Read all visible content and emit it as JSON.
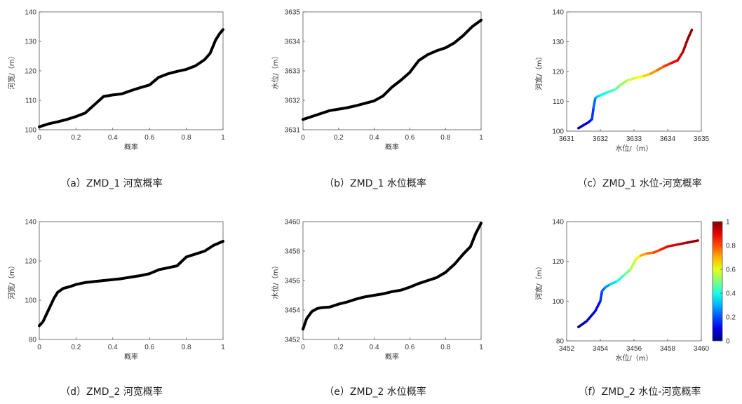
{
  "colors": {
    "line": "#000000",
    "axis": "#555555",
    "colormap": "jet"
  },
  "chart_data": [
    {
      "type": "line",
      "caption": "（a）ZMD_1 河宽概率",
      "xlabel": "概率",
      "ylabel": "河宽/（m）",
      "xlim": [
        0,
        1
      ],
      "ylim": [
        100,
        140
      ],
      "xticks": [
        0,
        0.2,
        0.4,
        0.6,
        0.8,
        1
      ],
      "xtick_labels": [
        "0",
        "0.2",
        "0.4",
        "0.6",
        "0.8",
        "1"
      ],
      "yticks": [
        100,
        110,
        120,
        130,
        140
      ],
      "ytick_labels": [
        "100",
        "110",
        "120",
        "130",
        "140"
      ],
      "x": [
        0,
        0.05,
        0.1,
        0.15,
        0.2,
        0.25,
        0.3,
        0.35,
        0.4,
        0.45,
        0.5,
        0.55,
        0.6,
        0.65,
        0.7,
        0.75,
        0.8,
        0.85,
        0.9,
        0.93,
        0.96,
        0.98,
        1.0
      ],
      "y": [
        101,
        102,
        102.7,
        103.5,
        104.5,
        105.7,
        108.5,
        111.3,
        111.8,
        112.2,
        113.3,
        114.3,
        115.2,
        117.8,
        119.0,
        119.8,
        120.5,
        121.7,
        123.8,
        126.0,
        130.5,
        132.5,
        134
      ]
    },
    {
      "type": "line",
      "caption": "（b）ZMD_1 水位概率",
      "xlabel": "概率",
      "ylabel": "水位/（m）",
      "xlim": [
        0,
        1
      ],
      "ylim": [
        3631,
        3635
      ],
      "xticks": [
        0,
        0.2,
        0.4,
        0.6,
        0.8,
        1
      ],
      "xtick_labels": [
        "0",
        "0.2",
        "0.4",
        "0.6",
        "0.8",
        "1"
      ],
      "yticks": [
        3631,
        3632,
        3633,
        3634,
        3635
      ],
      "ytick_labels": [
        "3631",
        "3632",
        "3633",
        "3634",
        "3635"
      ],
      "x": [
        0,
        0.05,
        0.1,
        0.15,
        0.2,
        0.25,
        0.3,
        0.35,
        0.4,
        0.45,
        0.5,
        0.55,
        0.6,
        0.65,
        0.7,
        0.75,
        0.8,
        0.85,
        0.9,
        0.95,
        1.0
      ],
      "y": [
        3631.35,
        3631.45,
        3631.55,
        3631.65,
        3631.7,
        3631.75,
        3631.82,
        3631.9,
        3631.98,
        3632.15,
        3632.45,
        3632.68,
        3632.95,
        3633.35,
        3633.55,
        3633.68,
        3633.78,
        3633.95,
        3634.2,
        3634.5,
        3634.72
      ]
    },
    {
      "type": "scatter",
      "caption": "（c）ZMD_1 水位-河宽概率",
      "xlabel": "水位/（m）",
      "ylabel": "河宽/（m）",
      "xlim": [
        3631,
        3635
      ],
      "ylim": [
        100,
        140
      ],
      "xticks": [
        3631,
        3632,
        3633,
        3634,
        3635
      ],
      "xtick_labels": [
        "3631",
        "3632",
        "3633",
        "3634",
        "3635"
      ],
      "yticks": [
        100,
        110,
        120,
        130,
        140
      ],
      "ytick_labels": [
        "100",
        "110",
        "120",
        "130",
        "140"
      ],
      "colorbar": {
        "min": 0,
        "max": 1,
        "ticks": [
          0,
          0.2,
          0.4,
          0.6,
          0.8,
          1
        ],
        "tick_labels": [
          "0",
          "0.2",
          "0.4",
          "0.6",
          "0.8",
          "1"
        ]
      },
      "x": [
        3631.35,
        3631.5,
        3631.65,
        3631.75,
        3631.8,
        3631.85,
        3631.9,
        3632.0,
        3632.2,
        3632.45,
        3632.6,
        3632.8,
        3633.1,
        3633.3,
        3633.5,
        3633.7,
        3633.9,
        3634.1,
        3634.3,
        3634.45,
        3634.6,
        3634.72
      ],
      "y": [
        101,
        102,
        103,
        104,
        108,
        111,
        111.5,
        112,
        113,
        114,
        115.5,
        117,
        118,
        118.5,
        119.3,
        120.5,
        121.8,
        122.8,
        123.8,
        126.5,
        131,
        134
      ],
      "c": [
        0,
        0.05,
        0.1,
        0.15,
        0.2,
        0.25,
        0.3,
        0.35,
        0.4,
        0.45,
        0.5,
        0.55,
        0.6,
        0.65,
        0.7,
        0.75,
        0.8,
        0.85,
        0.9,
        0.94,
        0.97,
        1.0
      ]
    },
    {
      "type": "line",
      "caption": "（d）ZMD_2 河宽概率",
      "xlabel": "概率",
      "ylabel": "河宽/（m）",
      "xlim": [
        0,
        1
      ],
      "ylim": [
        80,
        140
      ],
      "xticks": [
        0,
        0.2,
        0.4,
        0.6,
        0.8,
        1
      ],
      "xtick_labels": [
        "0",
        "0.2",
        "0.4",
        "0.6",
        "0.8",
        "1"
      ],
      "yticks": [
        80,
        100,
        120,
        140
      ],
      "ytick_labels": [
        "80",
        "100",
        "120",
        "140"
      ],
      "x": [
        0,
        0.02,
        0.05,
        0.08,
        0.1,
        0.13,
        0.17,
        0.2,
        0.25,
        0.3,
        0.35,
        0.4,
        0.45,
        0.5,
        0.55,
        0.6,
        0.65,
        0.7,
        0.75,
        0.8,
        0.85,
        0.9,
        0.95,
        1.0
      ],
      "y": [
        87,
        89,
        95,
        101,
        104,
        106,
        107,
        108,
        109,
        109.5,
        110,
        110.5,
        111,
        111.8,
        112.5,
        113.5,
        115.5,
        116.5,
        117.5,
        122,
        123.5,
        125,
        128,
        130
      ]
    },
    {
      "type": "line",
      "caption": "（e）ZMD_2 水位概率",
      "xlabel": "概率",
      "ylabel": "水位/（m）",
      "xlim": [
        0,
        1
      ],
      "ylim": [
        3452,
        3460
      ],
      "xticks": [
        0,
        0.2,
        0.4,
        0.6,
        0.8,
        1
      ],
      "xtick_labels": [
        "0",
        "0.2",
        "0.4",
        "0.6",
        "0.8",
        "1"
      ],
      "yticks": [
        3452,
        3454,
        3456,
        3458,
        3460
      ],
      "ytick_labels": [
        "3452",
        "3454",
        "3456",
        "3458",
        "3460"
      ],
      "x": [
        0,
        0.02,
        0.05,
        0.08,
        0.1,
        0.15,
        0.2,
        0.25,
        0.3,
        0.35,
        0.4,
        0.45,
        0.5,
        0.55,
        0.6,
        0.65,
        0.7,
        0.75,
        0.8,
        0.85,
        0.9,
        0.94,
        0.97,
        1.0
      ],
      "y": [
        3452.7,
        3453.4,
        3453.9,
        3454.1,
        3454.15,
        3454.2,
        3454.4,
        3454.55,
        3454.75,
        3454.9,
        3455.0,
        3455.1,
        3455.25,
        3455.35,
        3455.55,
        3455.8,
        3456.0,
        3456.2,
        3456.55,
        3457.1,
        3457.8,
        3458.3,
        3459.2,
        3459.9
      ]
    },
    {
      "type": "scatter",
      "caption": "（f）ZMD_2 水位-河宽概率",
      "xlabel": "水位/（m）",
      "ylabel": "河宽/（m）",
      "xlim": [
        3452,
        3460
      ],
      "ylim": [
        80,
        140
      ],
      "xticks": [
        3452,
        3454,
        3456,
        3458,
        3460
      ],
      "xtick_labels": [
        "3452",
        "3454",
        "3456",
        "3458",
        "3460"
      ],
      "yticks": [
        80,
        100,
        120,
        140
      ],
      "ytick_labels": [
        "80",
        "100",
        "120",
        "140"
      ],
      "colorbar": {
        "min": 0,
        "max": 1,
        "ticks": [
          0,
          0.2,
          0.4,
          0.6,
          0.8,
          1
        ],
        "tick_labels": [
          "0",
          "0.2",
          "0.4",
          "0.6",
          "0.8",
          "1"
        ]
      },
      "x": [
        3452.7,
        3453.2,
        3453.7,
        3454.0,
        3454.1,
        3454.3,
        3454.6,
        3455.0,
        3455.4,
        3455.8,
        3456.1,
        3456.4,
        3456.8,
        3457.2,
        3457.6,
        3458.0,
        3458.6,
        3459.2,
        3459.8
      ],
      "y": [
        87,
        90,
        95,
        100,
        105,
        107,
        108.5,
        110,
        113,
        116,
        121,
        123,
        124,
        124.5,
        126,
        127.5,
        128.5,
        129.5,
        130.5
      ],
      "c": [
        0,
        0.05,
        0.1,
        0.15,
        0.2,
        0.25,
        0.3,
        0.38,
        0.45,
        0.52,
        0.6,
        0.68,
        0.74,
        0.79,
        0.84,
        0.88,
        0.92,
        0.96,
        1.0
      ]
    }
  ]
}
